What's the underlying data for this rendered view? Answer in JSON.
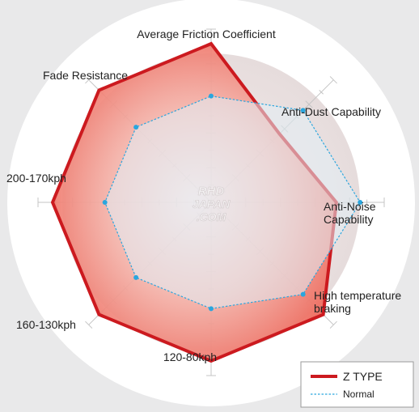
{
  "chart_data": {
    "type": "radar",
    "axes": [
      {
        "label": "Average Friction Coefficient",
        "lines": [
          "Average Friction Coefficient"
        ]
      },
      {
        "label": "Anti-Dust Capability",
        "lines": [
          "Anti-Dust Capability"
        ]
      },
      {
        "label": "Anti-Noise Capability",
        "lines": [
          "Anti-Noise",
          "Capability"
        ]
      },
      {
        "label": "High temperature braking",
        "lines": [
          "High temperature",
          "braking"
        ]
      },
      {
        "label": "120-80kph",
        "lines": [
          "120-80kph"
        ]
      },
      {
        "label": "160-130kph",
        "lines": [
          "160-130kph"
        ]
      },
      {
        "label": "200-170kph",
        "lines": [
          "200-170kph"
        ]
      },
      {
        "label": "Fade Resistance",
        "lines": [
          "Fade Resistance"
        ]
      }
    ],
    "scale_max": 5,
    "series": [
      {
        "name": "Z TYPE",
        "values": [
          5.0,
          3.05,
          3.95,
          5.0,
          5.0,
          5.0,
          5.0,
          5.0
        ],
        "color": "#cc1a1f",
        "style": "solid"
      },
      {
        "name": "Normal",
        "values": [
          3.35,
          4.1,
          4.7,
          4.1,
          3.35,
          3.35,
          3.35,
          3.35
        ],
        "color": "#2aa6de",
        "style": "dotted"
      }
    ],
    "legend": "bottom-right",
    "watermark": [
      "RHD",
      "JAPAN",
      ".COM"
    ]
  },
  "legend": {
    "z_type_label": "Z TYPE",
    "normal_label": "Normal"
  }
}
